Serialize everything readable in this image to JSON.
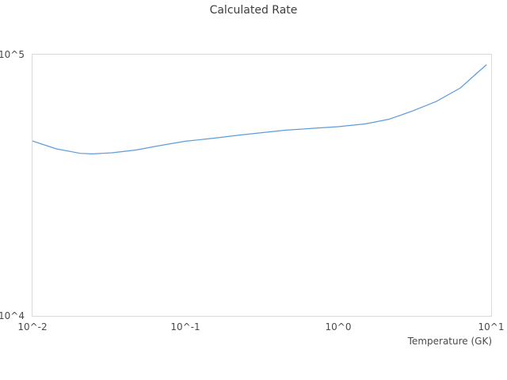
{
  "chart_data": {
    "type": "line",
    "title": "Calculated Rate",
    "xlabel": "Temperature (GK)",
    "ylabel": "",
    "x_scale": "log",
    "y_scale": "log",
    "xlim": [
      0.01,
      10
    ],
    "ylim": [
      10000,
      100000
    ],
    "grid": false,
    "legend_position": "none",
    "plot_border_color": "#d9d9d9",
    "background_color": "#ffffff",
    "title_color": "#3d3d3d",
    "tick_label_color": "#4a4a4a",
    "x_ticks": [
      {
        "value": 0.01,
        "label": "10^-2"
      },
      {
        "value": 0.1,
        "label": "10^-1"
      },
      {
        "value": 1,
        "label": "10^0"
      },
      {
        "value": 10,
        "label": "10^1"
      }
    ],
    "y_ticks": [
      {
        "value": 10000,
        "label": "10^4"
      },
      {
        "value": 100000,
        "label": "10^5"
      }
    ],
    "series": [
      {
        "name": "Calculated Rate",
        "color": "#5d9cdb",
        "line_width": 1.2,
        "x": [
          0.01,
          0.0143,
          0.0205,
          0.0245,
          0.033,
          0.047,
          0.067,
          0.1,
          0.155,
          0.22,
          0.32,
          0.455,
          0.65,
          1.0,
          1.5,
          2.15,
          3.07,
          4.4,
          6.3,
          8.0,
          9.3
        ],
        "y": [
          46700,
          43600,
          41900,
          41700,
          42100,
          43100,
          44800,
          46600,
          47900,
          49100,
          50300,
          51400,
          52100,
          53000,
          54300,
          56600,
          60900,
          66300,
          74600,
          84600,
          91300
        ]
      }
    ]
  }
}
